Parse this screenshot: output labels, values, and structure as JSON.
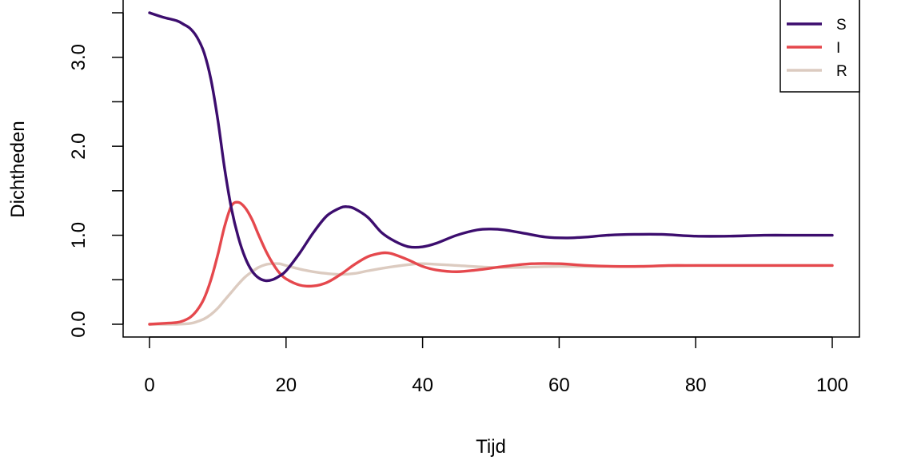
{
  "chart_data": {
    "type": "line",
    "xlabel": "Tijd",
    "ylabel": "Dichtheden",
    "xlim": [
      0,
      100
    ],
    "ylim": [
      0,
      3.5
    ],
    "x_ticks": [
      0,
      20,
      40,
      60,
      80,
      100
    ],
    "x_tick_labels": [
      "0",
      "20",
      "40",
      "60",
      "80",
      "100"
    ],
    "y_ticks": [
      0,
      0.5,
      1,
      1.5,
      2,
      2.5,
      3,
      3.5
    ],
    "y_tick_labels": [
      "0.0",
      "1.0",
      "2.0",
      "3.0"
    ],
    "y_tick_label_values": [
      0,
      1,
      2,
      3
    ],
    "grid": false,
    "legend_position": "top-right",
    "series": [
      {
        "name": "S",
        "color": "#3c0d6e",
        "x": [
          0,
          2,
          4,
          5,
          6,
          7,
          8,
          9,
          10,
          11,
          12,
          13,
          14,
          15,
          16,
          17,
          18,
          19,
          20,
          22,
          24,
          26,
          28,
          29,
          30,
          32,
          34,
          36,
          38,
          40,
          42,
          45,
          48,
          50,
          52,
          55,
          58,
          61,
          64,
          67,
          71,
          75,
          80,
          85,
          90,
          95,
          100
        ],
        "y": [
          3.5,
          3.45,
          3.41,
          3.37,
          3.32,
          3.22,
          3.05,
          2.75,
          2.3,
          1.75,
          1.3,
          0.98,
          0.75,
          0.6,
          0.52,
          0.49,
          0.5,
          0.54,
          0.6,
          0.8,
          1.03,
          1.22,
          1.31,
          1.32,
          1.3,
          1.2,
          1.03,
          0.93,
          0.87,
          0.87,
          0.91,
          1.0,
          1.06,
          1.07,
          1.06,
          1.02,
          0.98,
          0.97,
          0.98,
          1.0,
          1.01,
          1.01,
          0.99,
          0.99,
          1.0,
          1.0,
          1.0
        ]
      },
      {
        "name": "I",
        "color": "#e5484d",
        "x": [
          0,
          2,
          4,
          5,
          6,
          7,
          8,
          9,
          10,
          11,
          12,
          13,
          14,
          15,
          16,
          17,
          18,
          19,
          20,
          22,
          24,
          26,
          28,
          30,
          32,
          34,
          35,
          36,
          38,
          40,
          42,
          45,
          48,
          52,
          56,
          60,
          64,
          68,
          72,
          76,
          80,
          85,
          90,
          95,
          100
        ],
        "y": [
          0.0,
          0.01,
          0.02,
          0.04,
          0.08,
          0.16,
          0.29,
          0.5,
          0.78,
          1.1,
          1.33,
          1.37,
          1.31,
          1.18,
          1.0,
          0.83,
          0.69,
          0.58,
          0.51,
          0.44,
          0.43,
          0.47,
          0.56,
          0.67,
          0.76,
          0.8,
          0.8,
          0.78,
          0.72,
          0.65,
          0.61,
          0.59,
          0.61,
          0.65,
          0.68,
          0.68,
          0.66,
          0.65,
          0.65,
          0.66,
          0.66,
          0.66,
          0.66,
          0.66,
          0.66
        ]
      },
      {
        "name": "R",
        "color": "#dccbc0",
        "x": [
          0,
          2,
          4,
          6,
          7,
          8,
          9,
          10,
          11,
          12,
          13,
          14,
          15,
          16,
          17,
          18,
          19,
          20,
          22,
          24,
          26,
          28,
          30,
          32,
          35,
          38,
          40,
          45,
          50,
          55,
          60,
          70,
          80,
          90,
          100
        ],
        "y": [
          0.0,
          0.0,
          0.0,
          0.01,
          0.03,
          0.06,
          0.11,
          0.18,
          0.27,
          0.36,
          0.45,
          0.53,
          0.59,
          0.64,
          0.67,
          0.68,
          0.68,
          0.66,
          0.62,
          0.59,
          0.57,
          0.56,
          0.57,
          0.6,
          0.64,
          0.67,
          0.68,
          0.66,
          0.64,
          0.64,
          0.65,
          0.65,
          0.66,
          0.66,
          0.66
        ]
      }
    ]
  }
}
